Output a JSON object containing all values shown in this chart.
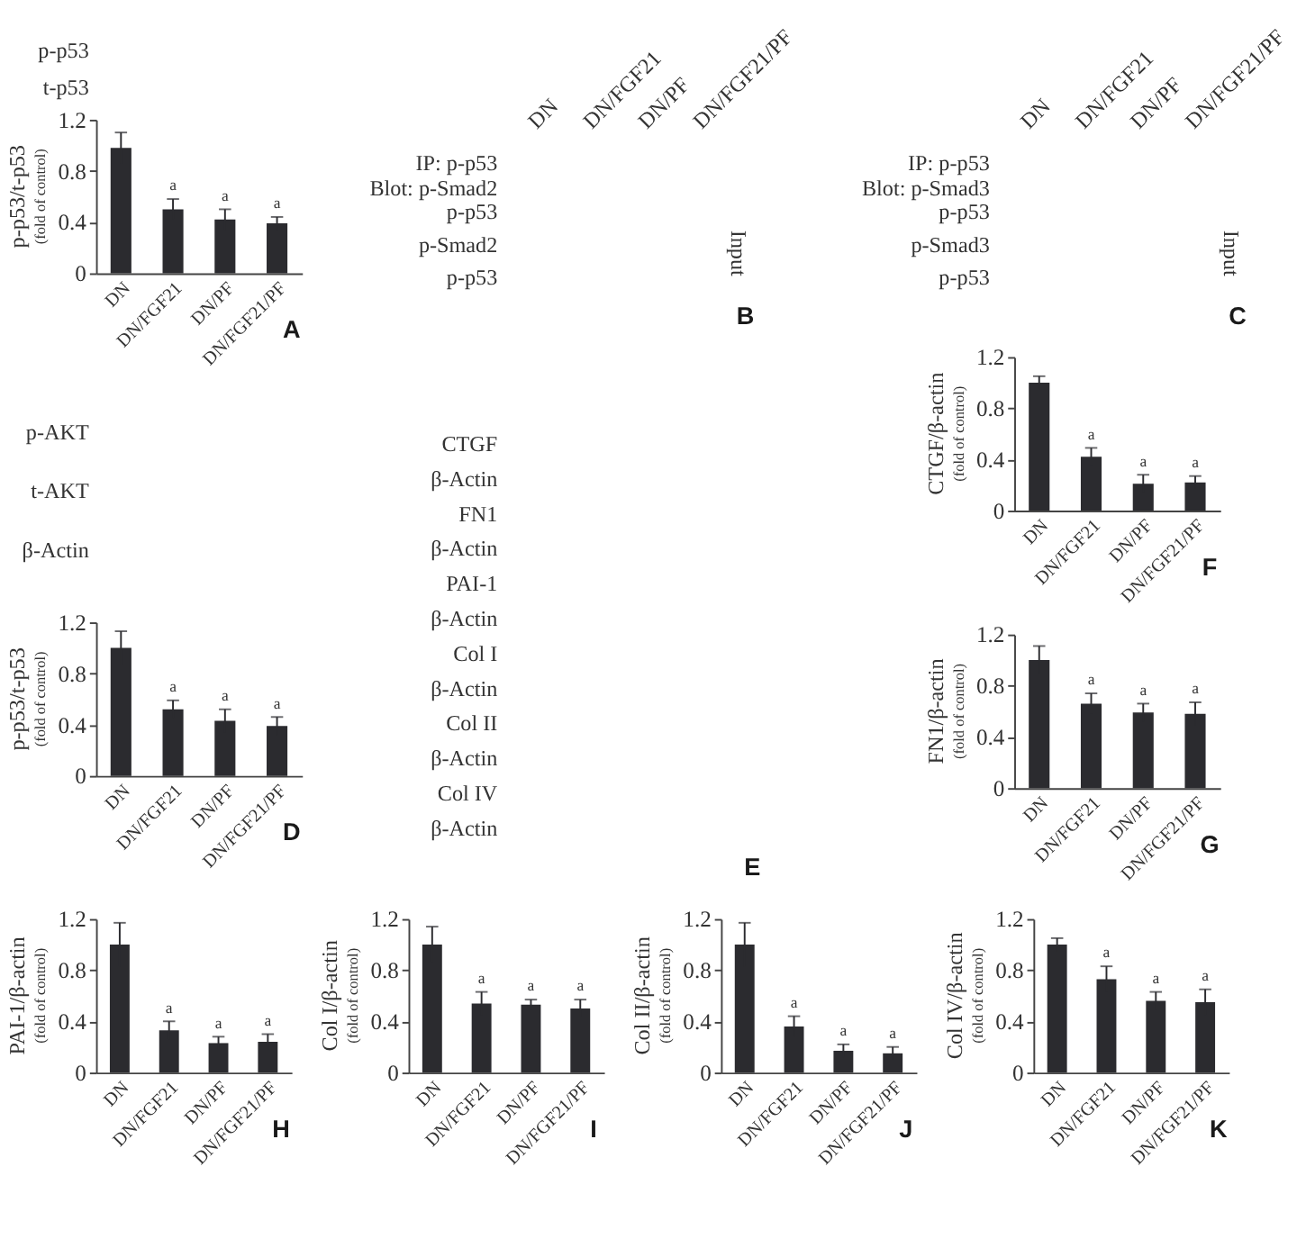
{
  "chart_data": [
    {
      "type": "bar",
      "title": "A",
      "annotations": [
        "p-p53",
        "t-p53"
      ],
      "ylabel": "p-p53/t-p53\n(fold of control)",
      "categories": [
        "DN",
        "DN/FGF21",
        "DN/PF",
        "DN/FGF21/PF"
      ],
      "values": [
        0.98,
        0.5,
        0.42,
        0.39
      ],
      "errors": [
        0.12,
        0.08,
        0.08,
        0.05
      ],
      "value_labels": [
        null,
        "a",
        "a",
        "a"
      ],
      "color": "#2b2b2f",
      "ylim": [
        0,
        1.2
      ],
      "yticks": [
        0,
        0.4,
        0.8,
        1.2
      ]
    },
    {
      "type": "other",
      "title": "B",
      "categories": [
        "DN",
        "DN/FGF21",
        "DN/PF",
        "DN/FGF21/PF"
      ],
      "annotations": [
        "IP: p-p53\nBlot: p-Smad2",
        "p-p53",
        "p-Smad2",
        "p-p53"
      ],
      "y2label": "Input"
    },
    {
      "type": "other",
      "title": "C",
      "categories": [
        "DN",
        "DN/FGF21",
        "DN/PF",
        "DN/FGF21/PF"
      ],
      "annotations": [
        "IP: p-p53\nBlot: p-Smad3",
        "p-p53",
        "p-Smad3",
        "p-p53"
      ],
      "y2label": "Input"
    },
    {
      "type": "bar",
      "title": "D",
      "annotations": [
        "p-AKT",
        "t-AKT",
        "β-Actin"
      ],
      "ylabel": "p-p53/t-p53\n(fold of control)",
      "categories": [
        "DN",
        "DN/FGF21",
        "DN/PF",
        "DN/FGF21/PF"
      ],
      "values": [
        1.0,
        0.52,
        0.43,
        0.39
      ],
      "errors": [
        0.13,
        0.07,
        0.09,
        0.07
      ],
      "value_labels": [
        null,
        "a",
        "a",
        "a"
      ],
      "color": "#2b2b2f",
      "ylim": [
        0,
        1.2
      ],
      "yticks": [
        0,
        0.4,
        0.8,
        1.2
      ]
    },
    {
      "type": "other",
      "title": "E",
      "annotations": [
        "CTGF",
        "β-Actin",
        "FN1",
        "β-Actin",
        "PAI-1",
        "β-Actin",
        "Col I",
        "β-Actin",
        "Col II",
        "β-Actin",
        "Col IV",
        "β-Actin"
      ]
    },
    {
      "type": "bar",
      "title": "F",
      "ylabel": "CTGF/β-actin\n(fold of control)",
      "categories": [
        "DN",
        "DN/FGF21",
        "DN/PF",
        "DN/FGF21/PF"
      ],
      "values": [
        1.0,
        0.42,
        0.21,
        0.22
      ],
      "errors": [
        0.05,
        0.07,
        0.07,
        0.05
      ],
      "value_labels": [
        null,
        "a",
        "a",
        "a"
      ],
      "color": "#2b2b2f",
      "ylim": [
        0,
        1.2
      ],
      "yticks": [
        0,
        0.4,
        0.8,
        1.2
      ]
    },
    {
      "type": "bar",
      "title": "G",
      "ylabel": "FN1/β-actin\n(fold of control)",
      "categories": [
        "DN",
        "DN/FGF21",
        "DN/PF",
        "DN/FGF21/PF"
      ],
      "values": [
        1.0,
        0.66,
        0.59,
        0.58
      ],
      "errors": [
        0.11,
        0.08,
        0.07,
        0.09
      ],
      "value_labels": [
        null,
        "a",
        "a",
        "a"
      ],
      "color": "#2b2b2f",
      "ylim": [
        0,
        1.2
      ],
      "yticks": [
        0,
        0.4,
        0.8,
        1.2
      ]
    },
    {
      "type": "bar",
      "title": "H",
      "ylabel": "PAI-1/β-actin\n(fold of control)",
      "categories": [
        "DN",
        "DN/FGF21",
        "DN/PF",
        "DN/FGF21/PF"
      ],
      "values": [
        1.0,
        0.33,
        0.23,
        0.24
      ],
      "errors": [
        0.17,
        0.07,
        0.05,
        0.06
      ],
      "value_labels": [
        null,
        "a",
        "a",
        "a"
      ],
      "color": "#2b2b2f",
      "ylim": [
        0,
        1.2
      ],
      "yticks": [
        0,
        0.4,
        0.8,
        1.2
      ]
    },
    {
      "type": "bar",
      "title": "I",
      "ylabel": "Col I/β-actin\n(fold of control)",
      "categories": [
        "DN",
        "DN/FGF21",
        "DN/PF",
        "DN/FGF21/PF"
      ],
      "values": [
        1.0,
        0.54,
        0.53,
        0.5
      ],
      "errors": [
        0.14,
        0.09,
        0.04,
        0.07
      ],
      "value_labels": [
        null,
        "a",
        "a",
        "a"
      ],
      "color": "#2b2b2f",
      "ylim": [
        0,
        1.2
      ],
      "yticks": [
        0,
        0.4,
        0.8,
        1.2
      ]
    },
    {
      "type": "bar",
      "title": "J",
      "ylabel": "Col II/β-actin\n(fold of control)",
      "categories": [
        "DN",
        "DN/FGF21",
        "DN/PF",
        "DN/FGF21/PF"
      ],
      "values": [
        1.0,
        0.36,
        0.17,
        0.15
      ],
      "errors": [
        0.17,
        0.08,
        0.05,
        0.05
      ],
      "value_labels": [
        null,
        "a",
        "a",
        "a"
      ],
      "color": "#2b2b2f",
      "ylim": [
        0,
        1.2
      ],
      "yticks": [
        0,
        0.4,
        0.8,
        1.2
      ]
    },
    {
      "type": "bar",
      "title": "K",
      "ylabel": "Col IV/β-actin\n(fold of control)",
      "categories": [
        "DN",
        "DN/FGF21",
        "DN/PF",
        "DN/FGF21/PF"
      ],
      "values": [
        1.0,
        0.73,
        0.56,
        0.55
      ],
      "errors": [
        0.05,
        0.1,
        0.07,
        0.1
      ],
      "value_labels": [
        null,
        "a",
        "a",
        "a"
      ],
      "color": "#2b2b2f",
      "ylim": [
        0,
        1.2
      ],
      "yticks": [
        0,
        0.4,
        0.8,
        1.2
      ]
    }
  ]
}
